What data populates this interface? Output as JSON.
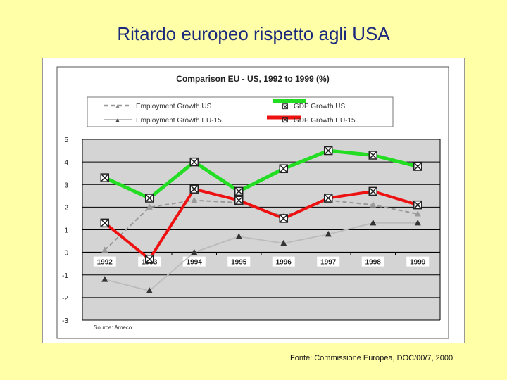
{
  "slide": {
    "title": "Ritardo europeo rispetto agli USA",
    "footer": "Fonte: Commissione Europea, DOC/00/7, 2000"
  },
  "colors": {
    "background": "#FFFFA8",
    "title": "#1b2a7a",
    "employment_us": "#999999",
    "employment_eu": "#bbbbbb",
    "gdp_us": "#22dd22",
    "gdp_eu": "#ee1111",
    "plot_bg": "#d4d4d4"
  },
  "chart_data": {
    "type": "line",
    "title": "Comparison EU - US, 1992 to 1999 (%)",
    "categories": [
      "1992",
      "1993",
      "1994",
      "1995",
      "1996",
      "1997",
      "1998",
      "1999"
    ],
    "ylim": [
      -3,
      5
    ],
    "yticks": [
      "5",
      "4",
      "3",
      "2",
      "1",
      "0",
      "-1",
      "-2",
      "-3"
    ],
    "grid": true,
    "legend_position": "top",
    "source_note": "Source: Ameco",
    "series": [
      {
        "name": "Employment Growth US",
        "values": [
          0.1,
          2.0,
          2.3,
          2.2,
          1.6,
          2.3,
          2.1,
          1.7
        ]
      },
      {
        "name": "Employment Growth EU-15",
        "values": [
          -1.2,
          -1.7,
          0.0,
          0.7,
          0.4,
          0.8,
          1.3,
          1.3
        ]
      },
      {
        "name": "GDP Growth US",
        "values": [
          3.3,
          2.4,
          4.0,
          2.7,
          3.7,
          4.5,
          4.3,
          3.8
        ]
      },
      {
        "name": "GDP Growth EU-15",
        "values": [
          1.3,
          -0.3,
          2.8,
          2.3,
          1.5,
          2.4,
          2.7,
          2.1
        ]
      }
    ]
  }
}
